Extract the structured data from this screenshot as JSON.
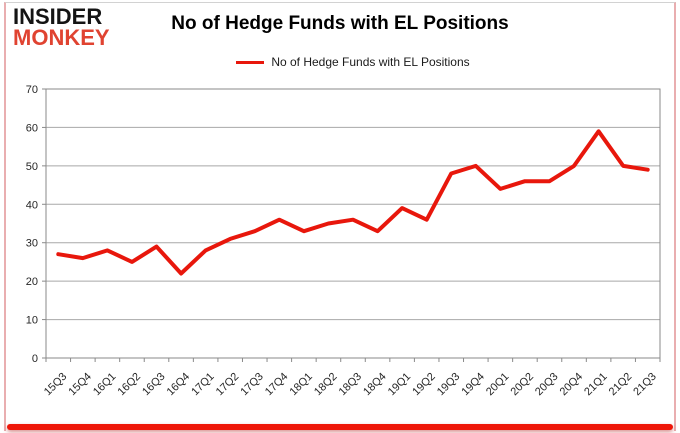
{
  "branding": {
    "logo_line1": "INSIDER",
    "logo_line2": "MONKEY",
    "logo_text_color": "#141414",
    "logo_accent_color": "#e04331"
  },
  "header": {
    "title": "No of Hedge Funds with EL Positions"
  },
  "legend": {
    "label": "No of Hedge Funds with EL Positions",
    "line_color": "#e8170c"
  },
  "chart_data": {
    "type": "line",
    "title": "No of Hedge Funds with EL Positions",
    "categories": [
      "15Q3",
      "15Q4",
      "16Q1",
      "16Q2",
      "16Q3",
      "16Q4",
      "17Q1",
      "17Q2",
      "17Q3",
      "17Q4",
      "18Q1",
      "18Q2",
      "18Q3",
      "18Q4",
      "19Q1",
      "19Q2",
      "19Q3",
      "19Q4",
      "20Q1",
      "20Q2",
      "20Q3",
      "20Q4",
      "21Q1",
      "21Q2",
      "21Q3"
    ],
    "series": [
      {
        "name": "No of Hedge Funds with EL Positions",
        "color": "#e8170c",
        "values": [
          27,
          26,
          28,
          25,
          29,
          22,
          28,
          31,
          33,
          36,
          33,
          35,
          36,
          33,
          39,
          36,
          48,
          50,
          44,
          46,
          46,
          50,
          59,
          50,
          49
        ]
      }
    ],
    "xlabel": "",
    "ylabel": "",
    "ylim": [
      0,
      70
    ],
    "yticks": [
      0,
      10,
      20,
      30,
      40,
      50,
      60,
      70
    ],
    "grid": true,
    "legend_position": "top",
    "gridline_color": "#a8a8a8",
    "axis_color": "#8a8a8a",
    "tick_label_color": "#262626"
  },
  "footer": {
    "accent_bar_color": "#ee1609"
  }
}
